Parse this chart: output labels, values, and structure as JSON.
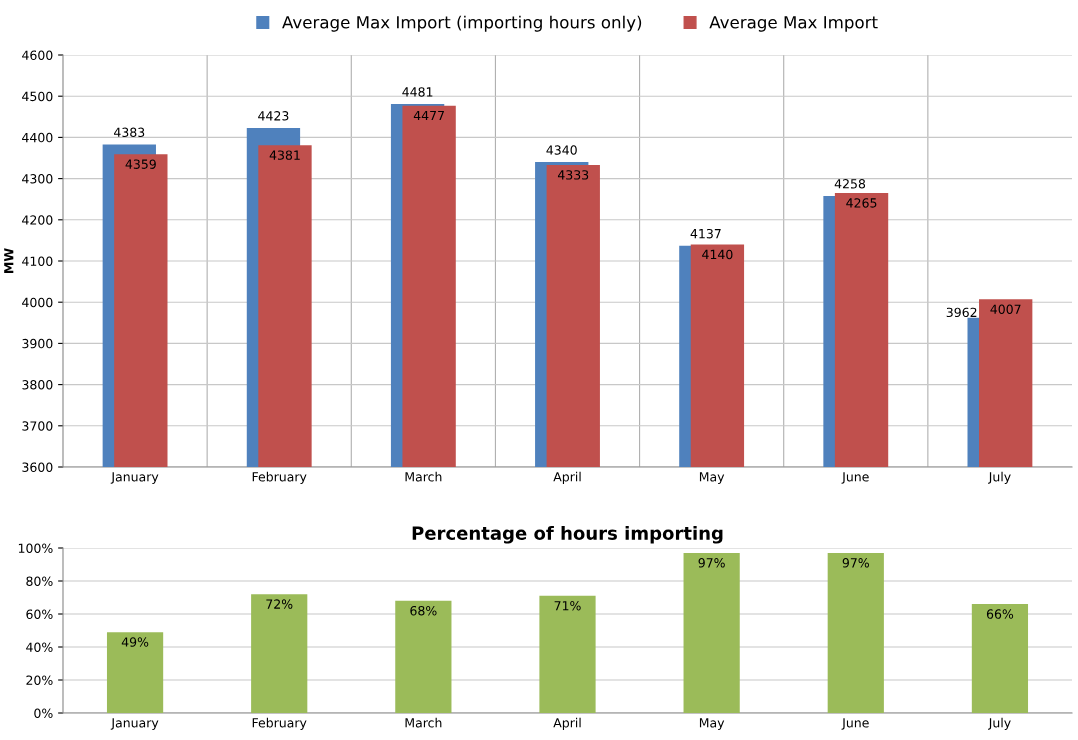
{
  "chart_data": [
    {
      "type": "bar",
      "ylabel": "MW",
      "categories": [
        "January",
        "February",
        "March",
        "April",
        "May",
        "June",
        "July"
      ],
      "series": [
        {
          "name": "Average Max Import (importing hours only)",
          "color": "#4f81bd",
          "values": [
            4383,
            4423,
            4481,
            4340,
            4137,
            4258,
            3962
          ]
        },
        {
          "name": "Average Max Import",
          "color": "#c0504d",
          "values": [
            4359,
            4381,
            4477,
            4333,
            4140,
            4265,
            4007
          ]
        }
      ],
      "ylim": [
        3600,
        4600
      ],
      "yticks": [
        3600,
        3700,
        3800,
        3900,
        4000,
        4100,
        4200,
        4300,
        4400,
        4500,
        4600
      ],
      "grid": true,
      "legend": "top",
      "data_labels": true
    },
    {
      "type": "bar",
      "title": "Percentage of hours importing",
      "categories": [
        "January",
        "February",
        "March",
        "April",
        "May",
        "June",
        "July"
      ],
      "values": [
        49,
        72,
        68,
        71,
        97,
        97,
        66
      ],
      "color": "#9bbb59",
      "value_labels": [
        "49%",
        "72%",
        "68%",
        "71%",
        "97%",
        "97%",
        "66%"
      ],
      "ylim": [
        0,
        100
      ],
      "yticks": [
        {
          "value": 0,
          "label": "0%"
        },
        {
          "value": 20,
          "label": "20%"
        },
        {
          "value": 40,
          "label": "40%"
        },
        {
          "value": 60,
          "label": "60%"
        },
        {
          "value": 80,
          "label": "80%"
        },
        {
          "value": 100,
          "label": "100%"
        }
      ],
      "grid": "y"
    }
  ]
}
